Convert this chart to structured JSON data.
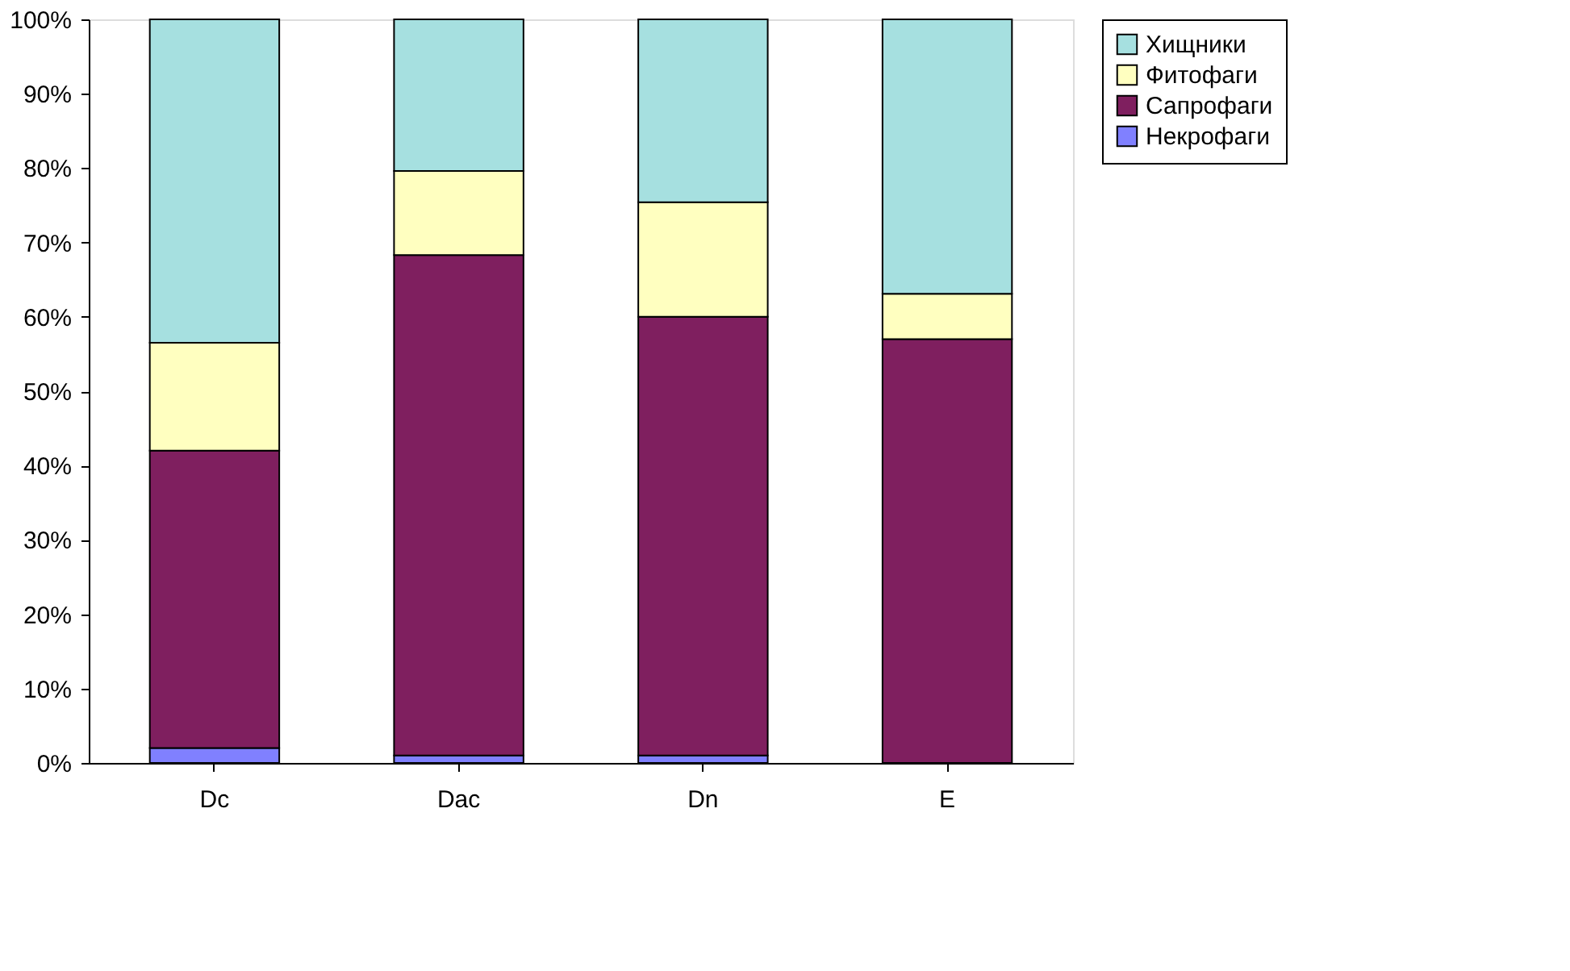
{
  "chart_data": {
    "type": "bar",
    "stacked": true,
    "categories": [
      "Dc",
      "Dac",
      "Dn",
      "E"
    ],
    "series": [
      {
        "name": "Некрофаги",
        "color": "#8080ff",
        "values": [
          2,
          1,
          1,
          0
        ]
      },
      {
        "name": "Сапрофаги",
        "color": "#7f1f5f",
        "values": [
          40,
          67.3,
          59,
          57
        ]
      },
      {
        "name": "Фитофаги",
        "color": "#ffffc0",
        "values": [
          14.5,
          11.3,
          15.4,
          6.1
        ]
      },
      {
        "name": "Хищники",
        "color": "#a6e0e0",
        "values": [
          43.5,
          20.4,
          24.6,
          36.9
        ]
      }
    ],
    "ylim": [
      0,
      100
    ],
    "yticks": [
      {
        "value": 0,
        "label": "0%"
      },
      {
        "value": 10,
        "label": "10%"
      },
      {
        "value": 20,
        "label": "20%"
      },
      {
        "value": 30,
        "label": "30%"
      },
      {
        "value": 40,
        "label": "40%"
      },
      {
        "value": 50,
        "label": "50%"
      },
      {
        "value": 60,
        "label": "60%"
      },
      {
        "value": 70,
        "label": "70%"
      },
      {
        "value": 80,
        "label": "80%"
      },
      {
        "value": 90,
        "label": "90%"
      },
      {
        "value": 100,
        "label": "100%"
      }
    ],
    "grid": false,
    "legend": "right"
  }
}
